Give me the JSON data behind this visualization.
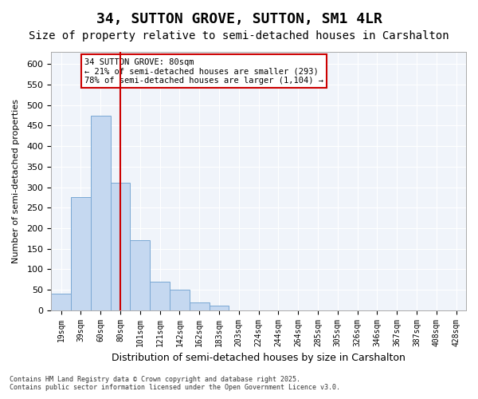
{
  "title": "34, SUTTON GROVE, SUTTON, SM1 4LR",
  "subtitle": "Size of property relative to semi-detached houses in Carshalton",
  "xlabel": "Distribution of semi-detached houses by size in Carshalton",
  "ylabel": "Number of semi-detached properties",
  "categories": [
    "19sqm",
    "39sqm",
    "60sqm",
    "80sqm",
    "101sqm",
    "121sqm",
    "142sqm",
    "162sqm",
    "183sqm",
    "203sqm",
    "224sqm",
    "244sqm",
    "264sqm",
    "285sqm",
    "305sqm",
    "326sqm",
    "346sqm",
    "367sqm",
    "387sqm",
    "408sqm",
    "428sqm"
  ],
  "values": [
    40,
    275,
    475,
    310,
    170,
    70,
    50,
    18,
    12,
    0,
    0,
    0,
    0,
    0,
    0,
    0,
    0,
    0,
    0,
    0,
    0
  ],
  "bar_color": "#c5d8f0",
  "bar_edge_color": "#7aa8d4",
  "red_line_index": 3,
  "annotation_title": "34 SUTTON GROVE: 80sqm",
  "annotation_line1": "← 21% of semi-detached houses are smaller (293)",
  "annotation_line2": "78% of semi-detached houses are larger (1,104) →",
  "annotation_color": "#cc0000",
  "ylim": [
    0,
    630
  ],
  "yticks": [
    0,
    50,
    100,
    150,
    200,
    250,
    300,
    350,
    400,
    450,
    500,
    550,
    600
  ],
  "background_color": "#f0f4fa",
  "footer_line1": "Contains HM Land Registry data © Crown copyright and database right 2025.",
  "footer_line2": "Contains public sector information licensed under the Open Government Licence v3.0.",
  "title_fontsize": 13,
  "subtitle_fontsize": 10,
  "xlabel_fontsize": 9,
  "ylabel_fontsize": 8
}
